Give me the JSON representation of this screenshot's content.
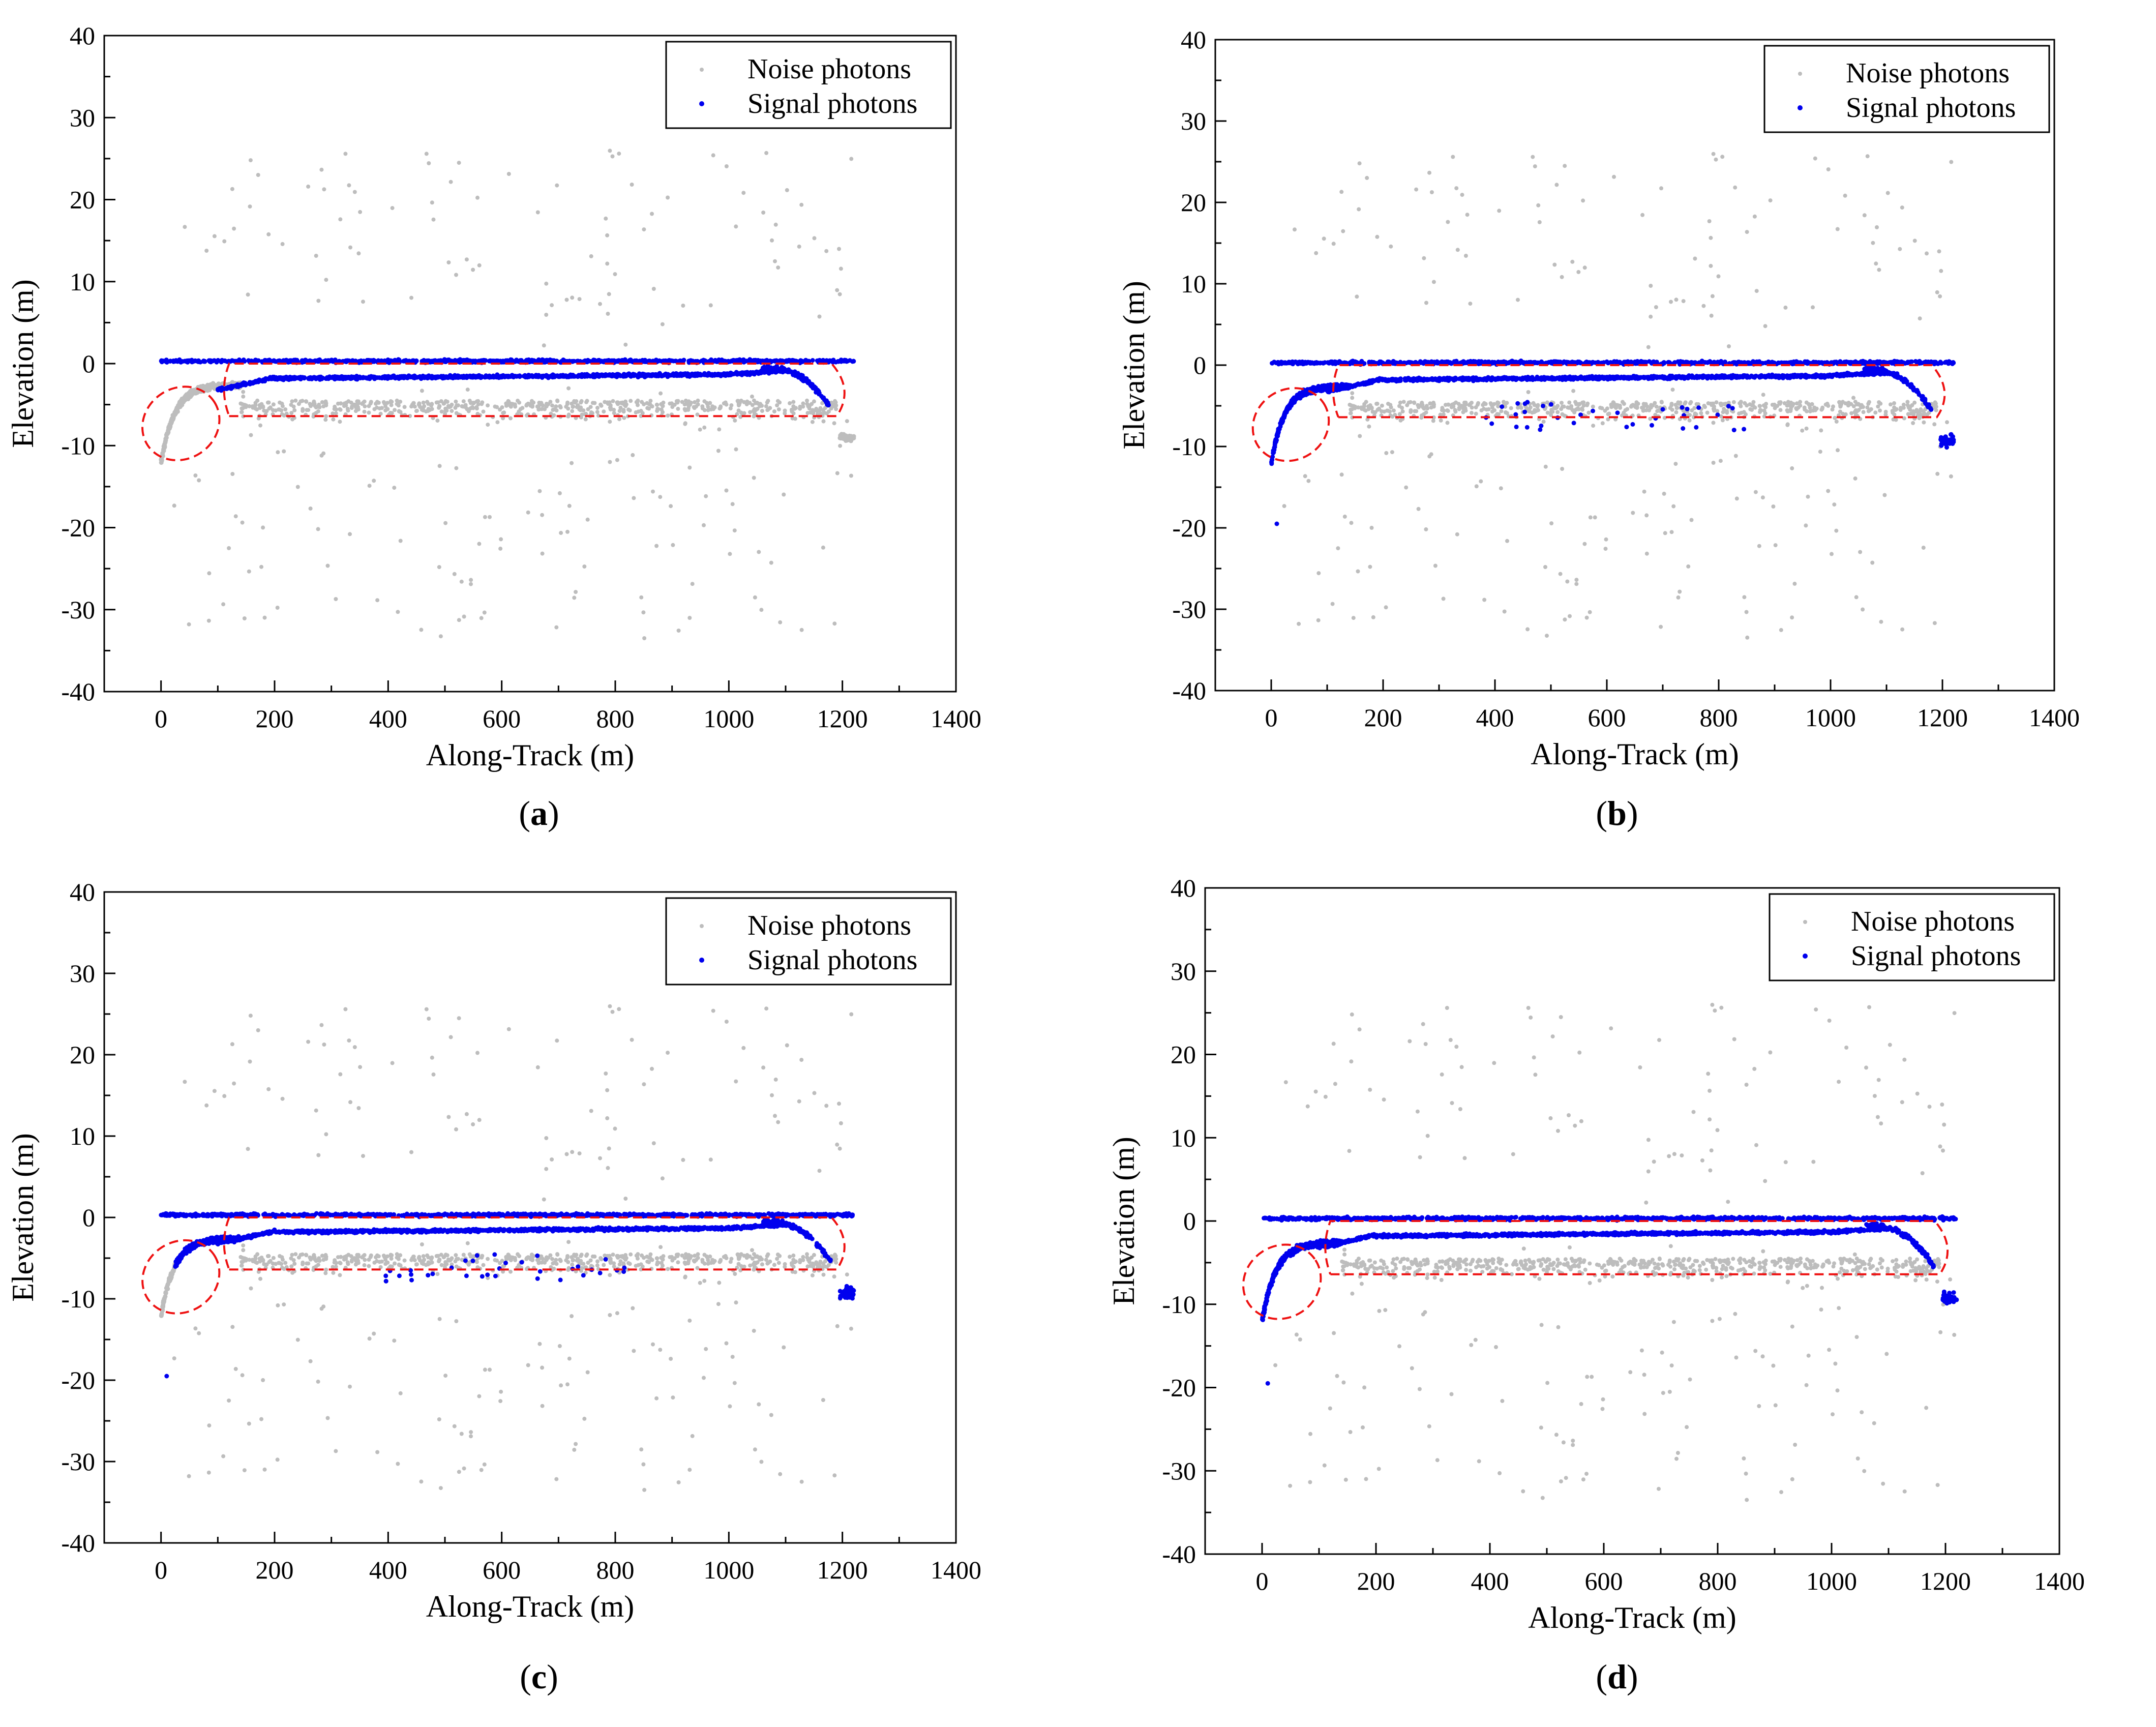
{
  "chart_data": [
    {
      "panel": "a",
      "label": "a",
      "type": "scatter",
      "xlabel": "Along-Track (m)",
      "ylabel": "Elevation (m)",
      "xlim": [
        -100,
        1400
      ],
      "ylim": [
        -40,
        40
      ],
      "xticks": [
        0,
        200,
        400,
        600,
        800,
        1000,
        1200,
        1400
      ],
      "yticks": [
        -40,
        -30,
        -20,
        -10,
        0,
        10,
        20,
        30,
        40
      ],
      "legend": [
        "Noise photons",
        "Signal photons"
      ],
      "legend_position": "top-right",
      "left_segment_label": "noise",
      "left_signal_start": 110,
      "right_drop_signal": false,
      "extra_signal": false,
      "colors": {
        "noise": "#bdbdbd",
        "signal": "#0000ee",
        "annotation": "#ee1111"
      }
    },
    {
      "panel": "b",
      "label": "b",
      "type": "scatter",
      "xlabel": "Along-Track (m)",
      "ylabel": "Elevation (m)",
      "xlim": [
        -100,
        1400
      ],
      "ylim": [
        -40,
        40
      ],
      "xticks": [
        0,
        200,
        400,
        600,
        800,
        1000,
        1200,
        1400
      ],
      "yticks": [
        -40,
        -30,
        -20,
        -10,
        0,
        10,
        20,
        30,
        40
      ],
      "legend": [
        "Noise photons",
        "Signal photons"
      ],
      "legend_position": "top-right",
      "left_segment_label": "signal",
      "left_signal_start": 0,
      "right_drop_signal": true,
      "extra_signal": true,
      "colors": {
        "noise": "#bdbdbd",
        "signal": "#0000ee",
        "annotation": "#ee1111"
      }
    },
    {
      "panel": "c",
      "label": "c",
      "type": "scatter",
      "xlabel": "Along-Track (m)",
      "ylabel": "Elevation (m)",
      "xlim": [
        -100,
        1400
      ],
      "ylim": [
        -40,
        40
      ],
      "xticks": [
        0,
        200,
        400,
        600,
        800,
        1000,
        1200,
        1400
      ],
      "yticks": [
        -40,
        -30,
        -20,
        -10,
        0,
        10,
        20,
        30,
        40
      ],
      "legend": [
        "Noise photons",
        "Signal photons"
      ],
      "legend_position": "top-right",
      "left_segment_label": "signal",
      "left_signal_start": 25,
      "right_drop_signal": true,
      "extra_signal": true,
      "colors": {
        "noise": "#bdbdbd",
        "signal": "#0000ee",
        "annotation": "#ee1111"
      }
    },
    {
      "panel": "d",
      "label": "d",
      "type": "scatter",
      "xlabel": "Along-Track (m)",
      "ylabel": "Elevation (m)",
      "xlim": [
        -100,
        1400
      ],
      "ylim": [
        -40,
        40
      ],
      "xticks": [
        0,
        200,
        400,
        600,
        800,
        1000,
        1200,
        1400
      ],
      "yticks": [
        -40,
        -30,
        -20,
        -10,
        0,
        10,
        20,
        30,
        40
      ],
      "legend": [
        "Noise photons",
        "Signal photons"
      ],
      "legend_position": "top-right",
      "left_segment_label": "signal",
      "left_signal_start": 0,
      "right_drop_signal": true,
      "extra_signal": false,
      "colors": {
        "noise": "#bdbdbd",
        "signal": "#0000ee",
        "annotation": "#ee1111"
      }
    }
  ]
}
